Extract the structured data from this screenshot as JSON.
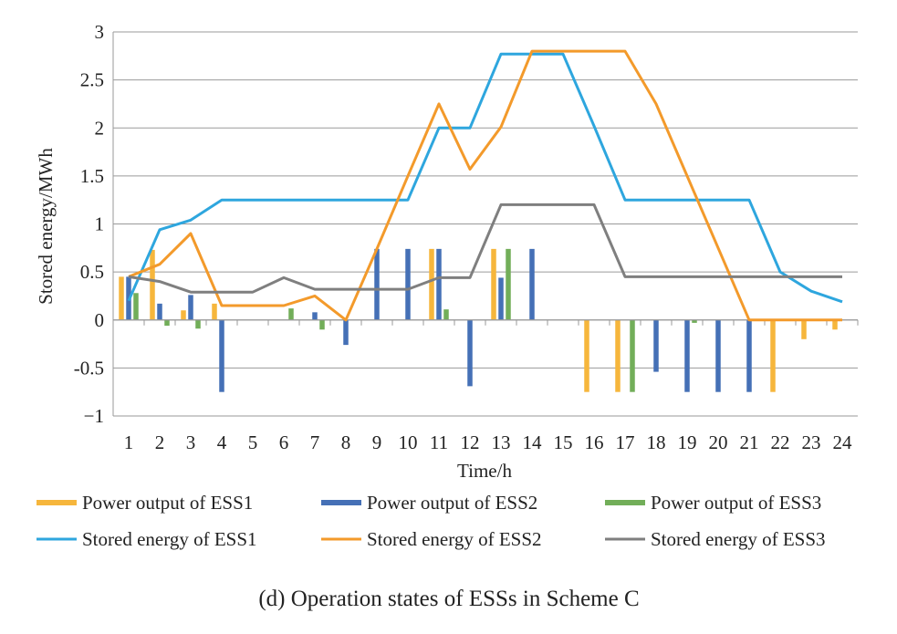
{
  "chart_data": {
    "type": "bar+line",
    "caption": "(d) Operation states of ESSs in Scheme C",
    "xlabel": "Time/h",
    "ylabel": "Stored energy/MWh",
    "ylim": [
      -1,
      3
    ],
    "yticks": [
      -1,
      -0.5,
      0,
      0.5,
      1,
      1.5,
      2,
      2.5,
      3
    ],
    "ytick_labels": [
      "−1",
      "-0.5",
      "0",
      "0.5",
      "1",
      "1.5",
      "2",
      "2.5",
      "3"
    ],
    "categories": [
      "1",
      "2",
      "3",
      "4",
      "5",
      "6",
      "7",
      "8",
      "9",
      "10",
      "11",
      "12",
      "13",
      "14",
      "15",
      "16",
      "17",
      "18",
      "19",
      "20",
      "21",
      "22",
      "23",
      "24"
    ],
    "grid": true,
    "legend_position": "bottom",
    "bar_series": [
      {
        "name": "Power output of ESS1",
        "color": "#F6B63C",
        "values": [
          0.45,
          0.73,
          0.1,
          0.17,
          0,
          0,
          0,
          0,
          0,
          0,
          0.74,
          0,
          0.74,
          0,
          0,
          -0.75,
          -0.75,
          0,
          0,
          0,
          0,
          -0.75,
          -0.2,
          -0.1
        ]
      },
      {
        "name": "Power output of ESS2",
        "color": "#4570B6",
        "values": [
          0.45,
          0.17,
          0.26,
          -0.75,
          0,
          0,
          0.08,
          -0.26,
          0.74,
          0.74,
          0.74,
          -0.69,
          0.44,
          0.74,
          0,
          0,
          0,
          -0.54,
          -0.75,
          -0.75,
          -0.75,
          0,
          0,
          0
        ]
      },
      {
        "name": "Power output of ESS3",
        "color": "#72AE59",
        "values": [
          0.28,
          -0.06,
          -0.09,
          0,
          0,
          0.12,
          -0.1,
          0,
          0,
          0,
          0.11,
          0,
          0.74,
          0,
          0,
          0,
          -0.75,
          0,
          -0.03,
          0,
          0,
          0,
          0,
          0
        ]
      }
    ],
    "line_series": [
      {
        "name": "Stored energy of ESS1",
        "color": "#2EA6DE",
        "values": [
          0.2,
          0.94,
          1.04,
          1.25,
          1.25,
          1.25,
          1.25,
          1.25,
          1.25,
          1.25,
          2.0,
          2.0,
          2.77,
          2.77,
          2.77,
          2.02,
          1.25,
          1.25,
          1.25,
          1.25,
          1.25,
          0.5,
          0.3,
          0.19
        ]
      },
      {
        "name": "Stored energy of ESS2",
        "color": "#F39A2B",
        "values": [
          0.45,
          0.58,
          0.9,
          0.15,
          0.15,
          0.15,
          0.25,
          0.0,
          0.74,
          1.5,
          2.25,
          1.57,
          2.01,
          2.8,
          2.8,
          2.8,
          2.8,
          2.25,
          1.5,
          0.75,
          0.0,
          0.0,
          0.0,
          0.0
        ]
      },
      {
        "name": "Stored energy of ESS3",
        "color": "#7F7F7F",
        "values": [
          0.45,
          0.4,
          0.29,
          0.29,
          0.29,
          0.44,
          0.32,
          0.32,
          0.32,
          0.32,
          0.44,
          0.44,
          1.2,
          1.2,
          1.2,
          1.2,
          0.45,
          0.45,
          0.45,
          0.45,
          0.45,
          0.45,
          0.45,
          0.45
        ]
      }
    ]
  }
}
